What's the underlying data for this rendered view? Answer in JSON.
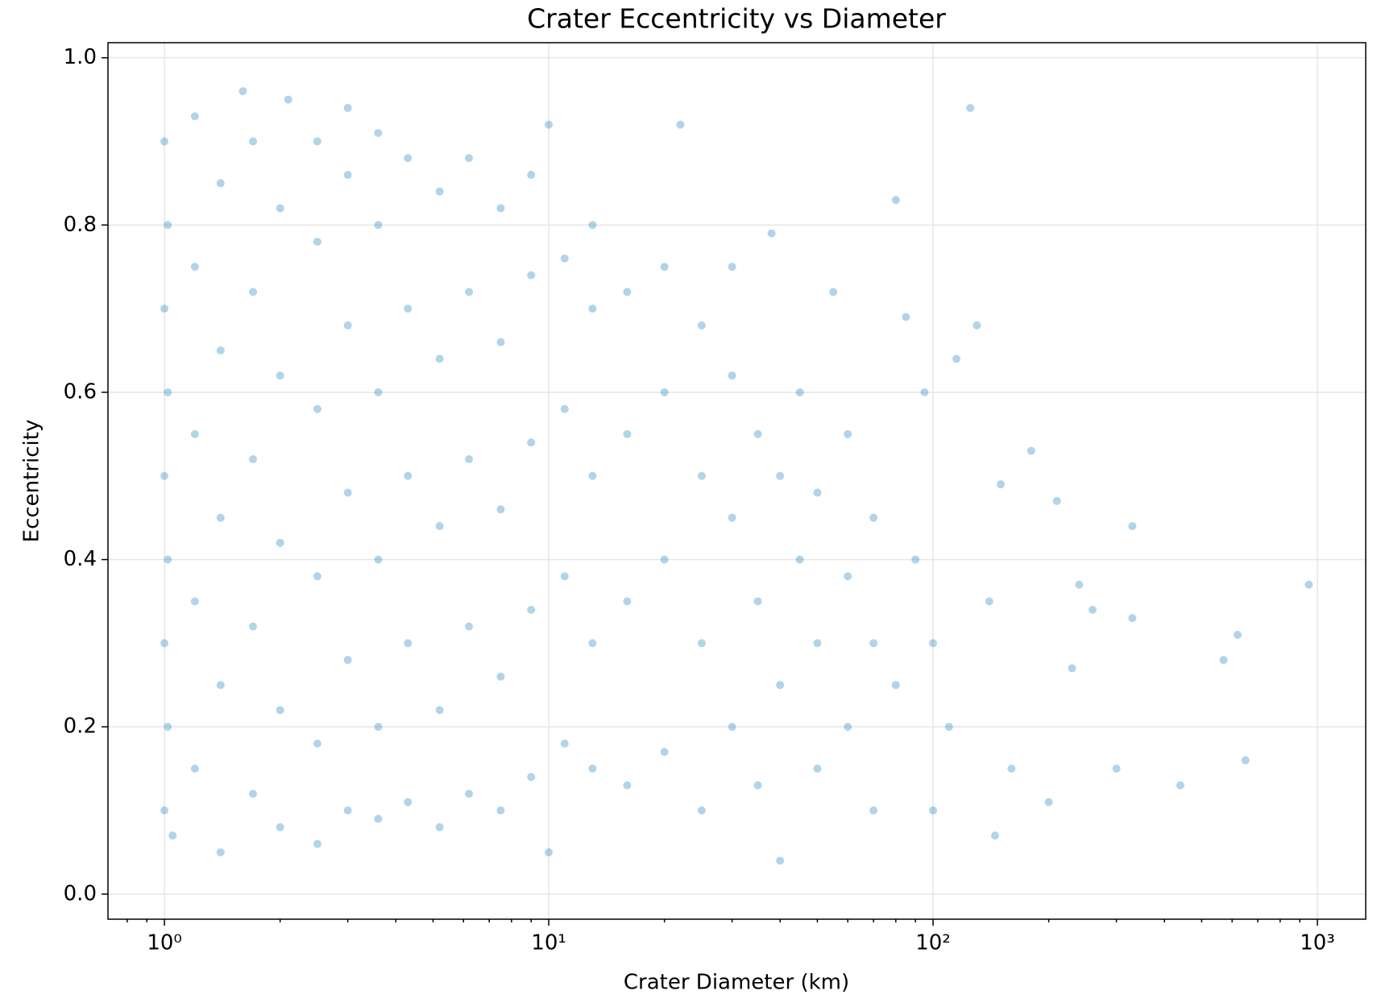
{
  "chart_data": {
    "type": "scatter",
    "title": "Crater Eccentricity vs Diameter",
    "x_label": "Crater Diameter (km)",
    "y_label": "Eccentricity",
    "x_scale": "log",
    "grid": true,
    "color": "#0072b2",
    "alpha": 0.3,
    "xlim": [
      0.713,
      1336
    ],
    "ylim": [
      -0.03,
      1.018
    ],
    "xticks": [
      {
        "value": 1,
        "label": "10⁰"
      },
      {
        "value": 10,
        "label": "10¹"
      },
      {
        "value": 100,
        "label": "10²"
      },
      {
        "value": 1000,
        "label": "10³"
      }
    ],
    "xminorticks": [
      0.8,
      0.9,
      2,
      3,
      4,
      5,
      6,
      7,
      8,
      9,
      20,
      30,
      40,
      50,
      60,
      70,
      80,
      90,
      200,
      300,
      400,
      500,
      600,
      700,
      800,
      900
    ],
    "yticks": [
      {
        "value": 0,
        "label": "0.0"
      },
      0.2,
      0.4,
      0.6,
      0.8,
      {
        "value": 1,
        "label": "1.0"
      }
    ],
    "x": [
      1,
      1,
      1,
      1,
      1,
      1.02,
      1.02,
      1.02,
      1.02,
      1.05,
      1.2,
      1.2,
      1.2,
      1.2,
      1.2,
      1.4,
      1.4,
      1.4,
      1.4,
      1.4,
      1.6,
      1.7,
      1.7,
      1.7,
      1.7,
      1.7,
      2,
      2,
      2,
      2,
      2,
      2.1,
      2.5,
      2.5,
      2.5,
      2.5,
      2.5,
      2.5,
      3,
      3,
      3,
      3,
      3,
      3,
      3.6,
      3.6,
      3.6,
      3.6,
      3.6,
      3.6,
      4.3,
      4.3,
      4.3,
      4.3,
      4.3,
      5.2,
      5.2,
      5.2,
      5.2,
      5.2,
      6.2,
      6.2,
      6.2,
      6.2,
      6.2,
      7.5,
      7.5,
      7.5,
      7.5,
      7.5,
      9,
      9,
      9,
      9,
      9,
      10,
      10,
      11,
      11,
      11,
      11,
      13,
      13,
      13,
      13,
      13,
      16,
      16,
      16,
      16,
      20,
      20,
      20,
      20,
      22,
      25,
      25,
      25,
      25,
      30,
      30,
      30,
      30,
      35,
      35,
      35,
      38,
      40,
      40,
      40,
      45,
      45,
      50,
      50,
      50,
      55,
      60,
      60,
      60,
      70,
      70,
      70,
      80,
      80,
      85,
      90,
      95,
      100,
      100,
      110,
      115,
      125,
      130,
      140,
      145,
      150,
      160,
      180,
      200,
      210,
      230,
      240,
      260,
      300,
      330,
      330,
      440,
      570,
      620,
      650,
      950
    ],
    "values": [
      0.1,
      0.3,
      0.5,
      0.7,
      0.9,
      0.2,
      0.4,
      0.6,
      0.8,
      0.07,
      0.15,
      0.35,
      0.55,
      0.75,
      0.93,
      0.05,
      0.25,
      0.45,
      0.65,
      0.85,
      0.96,
      0.12,
      0.32,
      0.52,
      0.72,
      0.9,
      0.08,
      0.22,
      0.42,
      0.62,
      0.82,
      0.95,
      0.06,
      0.18,
      0.38,
      0.58,
      0.78,
      0.9,
      0.1,
      0.28,
      0.48,
      0.68,
      0.86,
      0.94,
      0.09,
      0.2,
      0.4,
      0.6,
      0.8,
      0.91,
      0.11,
      0.3,
      0.5,
      0.7,
      0.88,
      0.08,
      0.22,
      0.44,
      0.64,
      0.84,
      0.12,
      0.32,
      0.52,
      0.72,
      0.88,
      0.1,
      0.26,
      0.46,
      0.66,
      0.82,
      0.14,
      0.34,
      0.54,
      0.74,
      0.86,
      0.05,
      0.92,
      0.18,
      0.38,
      0.58,
      0.76,
      0.15,
      0.3,
      0.5,
      0.7,
      0.8,
      0.13,
      0.35,
      0.55,
      0.72,
      0.17,
      0.4,
      0.6,
      0.75,
      0.92,
      0.1,
      0.3,
      0.5,
      0.68,
      0.2,
      0.45,
      0.62,
      0.75,
      0.13,
      0.35,
      0.55,
      0.79,
      0.04,
      0.25,
      0.5,
      0.4,
      0.6,
      0.15,
      0.3,
      0.48,
      0.72,
      0.2,
      0.38,
      0.55,
      0.1,
      0.3,
      0.45,
      0.83,
      0.25,
      0.69,
      0.4,
      0.6,
      0.1,
      0.3,
      0.2,
      0.64,
      0.94,
      0.68,
      0.35,
      0.07,
      0.49,
      0.15,
      0.53,
      0.11,
      0.47,
      0.27,
      0.37,
      0.34,
      0.15,
      0.44,
      0.33,
      0.13,
      0.28,
      0.31,
      0.16,
      0.37
    ]
  }
}
